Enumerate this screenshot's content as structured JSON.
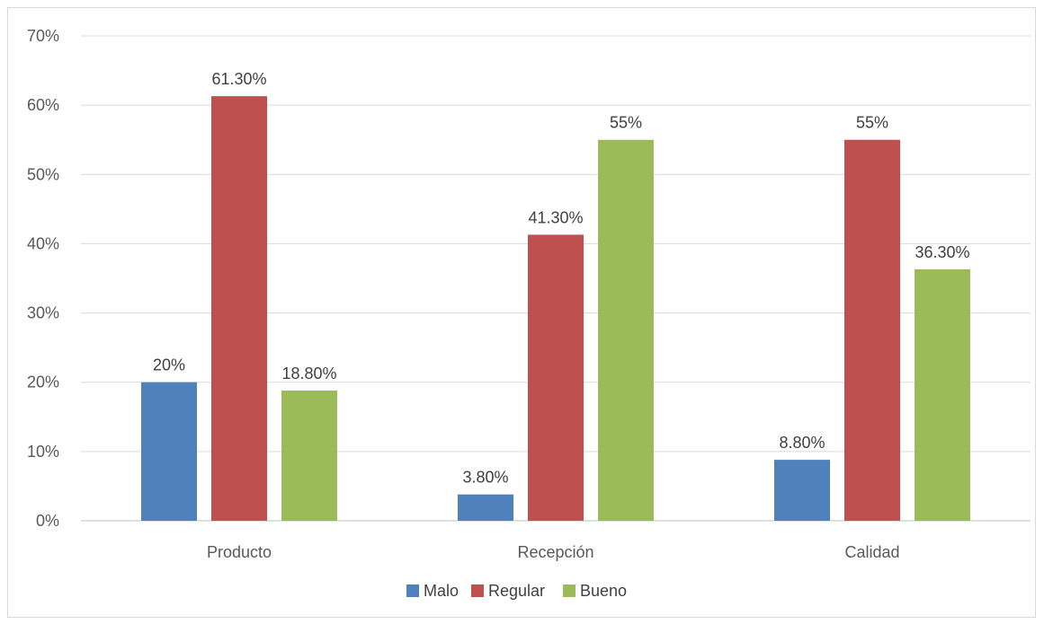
{
  "chart_data": {
    "type": "bar",
    "categories": [
      "Producto",
      "Recepción",
      "Calidad"
    ],
    "series": [
      {
        "name": "Malo",
        "color": "#4f81bd",
        "values": [
          20,
          3.8,
          8.8
        ],
        "labels": [
          "20%",
          "3.80%",
          "8.80%"
        ]
      },
      {
        "name": "Regular",
        "color": "#c0504d",
        "values": [
          61.3,
          41.3,
          55
        ],
        "labels": [
          "61.30%",
          "41.30%",
          "55%"
        ]
      },
      {
        "name": "Bueno",
        "color": "#9bbb59",
        "values": [
          18.8,
          55,
          36.3
        ],
        "labels": [
          "18.80%",
          "55%",
          "36.30%"
        ]
      }
    ],
    "ylim": [
      0,
      70
    ],
    "yticks": [
      "0%",
      "10%",
      "20%",
      "30%",
      "40%",
      "50%",
      "60%",
      "70%"
    ],
    "grid": true,
    "legend": "bottom",
    "title": "",
    "xlabel": "",
    "ylabel": ""
  }
}
